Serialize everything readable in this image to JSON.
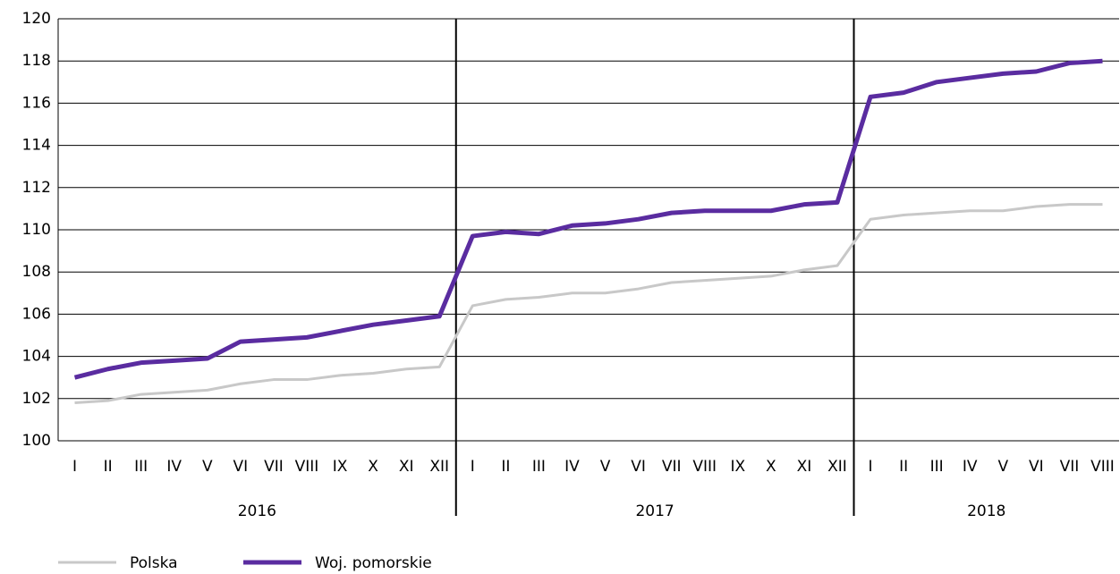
{
  "chart_data": {
    "type": "line",
    "categories": [
      "I",
      "II",
      "III",
      "IV",
      "V",
      "VI",
      "VII",
      "VIII",
      "IX",
      "X",
      "XI",
      "XII",
      "I",
      "II",
      "III",
      "IV",
      "V",
      "VI",
      "VII",
      "VIII",
      "IX",
      "X",
      "XI",
      "XII",
      "I",
      "II",
      "III",
      "IV",
      "V",
      "VI",
      "VII",
      "VIII"
    ],
    "groups": [
      {
        "label": "2016",
        "span": 12
      },
      {
        "label": "2017",
        "span": 12
      },
      {
        "label": "2018",
        "span": 8
      }
    ],
    "series": [
      {
        "name": "Polska",
        "color": "#c8c8c8",
        "values": [
          101.8,
          101.9,
          102.2,
          102.3,
          102.4,
          102.7,
          102.9,
          102.9,
          103.1,
          103.2,
          103.4,
          103.5,
          106.4,
          106.7,
          106.8,
          107.0,
          107.0,
          107.2,
          107.5,
          107.6,
          107.7,
          107.8,
          108.1,
          108.3,
          110.5,
          110.7,
          110.8,
          110.9,
          110.9,
          111.1,
          111.2,
          111.2
        ]
      },
      {
        "name": "Woj. pomorskie",
        "color": "#5a2ca0",
        "values": [
          103.0,
          103.4,
          103.7,
          103.8,
          103.9,
          104.7,
          104.8,
          104.9,
          105.2,
          105.5,
          105.7,
          105.9,
          109.7,
          109.9,
          109.8,
          110.2,
          110.3,
          110.5,
          110.8,
          110.9,
          110.9,
          110.9,
          111.2,
          111.3,
          116.3,
          116.5,
          117.0,
          117.2,
          117.4,
          117.5,
          117.9,
          118.0
        ]
      }
    ],
    "ylim": [
      100,
      120
    ],
    "yticks": [
      100,
      102,
      104,
      106,
      108,
      110,
      112,
      114,
      116,
      118,
      120
    ],
    "grid": true,
    "legend": "bottom"
  }
}
